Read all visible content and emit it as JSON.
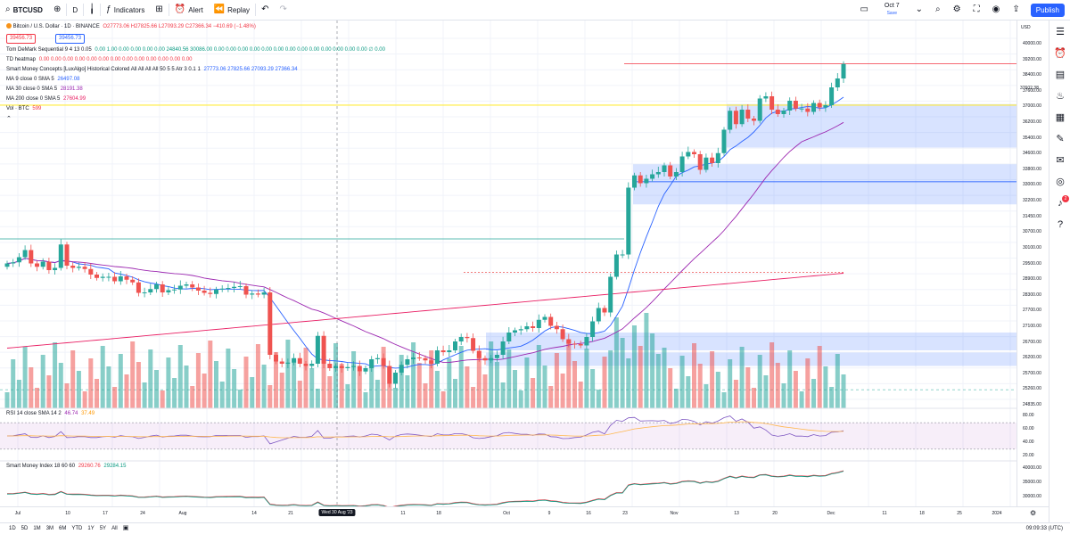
{
  "topbar": {
    "symbol": "BTCUSD",
    "interval": "D",
    "indicators_label": "Indicators",
    "alert_label": "Alert",
    "replay_label": "Replay",
    "date": "Oct 7",
    "date_sub": "Save",
    "publish_label": "Publish"
  },
  "chart_legend": {
    "title": "Bitcoin / U.S. Dollar · 1D · BINANCE",
    "ohlc": "O27773.06 H27825.66 L27093.29 C27366.34 −410.69 (−1.48%)",
    "price_boxes": [
      "39456.73",
      "39456.73"
    ],
    "indicators": [
      {
        "name": "Tom DeMark Sequential 9 4 13 0.05",
        "values": "0.00 1.00 0.00 0.00 0.00 0.00 24840.56 30086.00 0.00 0.00 0.00 0.00 0.00 0.00 0.00 0.00 0.00 0.00 0.00 0.00 0.00 ∅ 0.00"
      },
      {
        "name": "TD heatmap",
        "values": "0.00 0.00 0.00 0.00 0.00 0.00 0.00 0.00 0.00 0.00 0.00 0.00 0.00"
      },
      {
        "name": "Smart Money Concepts [LuxAlgo] Historical Colored All All All All 50 5 5 Atr 3 0.1 1",
        "values": "27773.06 27825.66 27093.29 27366.34"
      },
      {
        "name": "MA 9 close 0 SMA 5",
        "values": "26497.08"
      },
      {
        "name": "MA 30 close 0 SMA 5",
        "values": "28191.38"
      },
      {
        "name": "MA 200 close 0 SMA 5",
        "values": "27604.99"
      },
      {
        "name": "Vol · BTC",
        "values": "599"
      }
    ]
  },
  "rsi_legend": {
    "name": "RSI 14 close SMA 14 2",
    "value1": "46.74",
    "value2": "37.49"
  },
  "smi_legend": {
    "name": "Smart Money Index 18 60 60",
    "value1": "29260.76",
    "value2": "29284.15"
  },
  "price_axis": {
    "currency": "USD",
    "ticks": [
      "40000.00",
      "39200.00",
      "38400.00",
      "37600.00",
      "37000.00",
      "36200.00",
      "35400.00",
      "34600.00",
      "33800.00",
      "33000.00",
      "32200.00",
      "31450.00",
      "30700.00",
      "30100.00",
      "29500.00",
      "28900.00",
      "28300.00",
      "27700.00",
      "27100.00",
      "26700.00",
      "26200.00",
      "25700.00",
      "25260.00",
      "24835.00"
    ],
    "labels": [
      {
        "text": "BTCUSD",
        "color": "#f57c00"
      },
      {
        "text": "39456.73",
        "color": "#f23645"
      },
      {
        "text": "38907.66",
        "color": "#131722"
      },
      {
        "text": "37602.38",
        "color": "#fbc02d"
      }
    ],
    "rsi_ticks": [
      "80.00",
      "60.00",
      "40.00",
      "20.00"
    ],
    "smi_ticks": [
      "40000.00",
      "35000.00",
      "30000.00"
    ]
  },
  "time_axis": {
    "ticks": [
      "Jul",
      "10",
      "17",
      "24",
      "Aug",
      "14",
      "21",
      "11",
      "18",
      "Oct",
      "9",
      "16",
      "23",
      "Nov",
      "13",
      "20",
      "Dec",
      "11",
      "18",
      "25",
      "2024"
    ],
    "crosshair_label": "Wed 30 Aug '23"
  },
  "bottombar": {
    "ranges": [
      "1D",
      "5D",
      "1M",
      "3M",
      "6M",
      "YTD",
      "1Y",
      "5Y",
      "All"
    ],
    "clock": "09:09:33 (UTC)"
  },
  "colors": {
    "up": "#26a69a",
    "down": "#ef5350",
    "accent": "#2962ff",
    "ma9": "#2962ff",
    "ma30": "#9c27b0",
    "ma200": "#e91e63"
  },
  "rightbar_badge": "2",
  "chart_data": {
    "type": "candlestick",
    "ylim": [
      24400,
      40600
    ],
    "x_range": [
      "2023-07-01",
      "2024-01-01"
    ],
    "closes": [
      30500,
      30550,
      30780,
      31100,
      30500,
      30350,
      30580,
      30200,
      30300,
      31350,
      30400,
      30300,
      30350,
      30250,
      30000,
      29850,
      29900,
      29900,
      29700,
      29920,
      29770,
      29650,
      29180,
      29200,
      29350,
      29560,
      29200,
      29300,
      29330,
      29500,
      29560,
      29420,
      29280,
      29180,
      29130,
      29330,
      29370,
      29400,
      29450,
      29480,
      29100,
      29150,
      29100,
      29200,
      26400,
      26100,
      26000,
      26050,
      26250,
      26000,
      25900,
      26000,
      27250,
      26000,
      25800,
      25900,
      25800,
      25850,
      25900,
      25650,
      25800,
      26200,
      26250,
      25900,
      25100,
      25600,
      25950,
      26200,
      26280,
      26250,
      26150,
      26000,
      26600,
      26520,
      26600,
      27000,
      27200,
      27150,
      26580,
      26250,
      26150,
      26250,
      26400,
      27000,
      27400,
      27500,
      27550,
      27680,
      27600,
      27970,
      28100,
      27700,
      27550,
      27100,
      26900,
      26880,
      26820,
      27200,
      27900,
      28500,
      28300,
      29900,
      30900,
      30900,
      33900,
      34450,
      34100,
      34300,
      34500,
      34600,
      34900,
      34400,
      34600,
      35300,
      35500,
      35400,
      34700,
      35250,
      35000,
      35450,
      36500,
      37350,
      36750,
      37400,
      37000,
      36900,
      37900,
      38000,
      37400,
      37200,
      37360,
      37800,
      37450,
      37450,
      37300,
      37700,
      37500,
      37600,
      38400,
      38800,
      39450
    ]
  }
}
